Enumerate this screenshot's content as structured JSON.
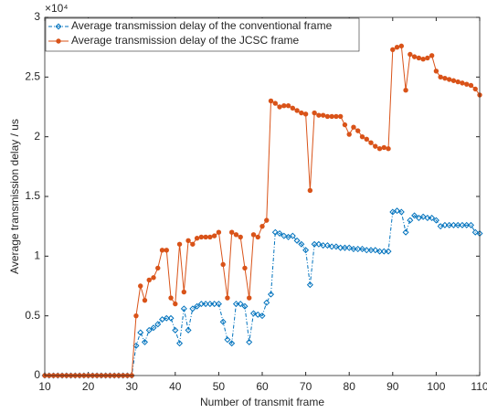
{
  "chart_data": {
    "type": "line",
    "xlabel": "Number of transmit frame",
    "ylabel": "Average transmission delay / us",
    "y_exponent_label": "×10⁴",
    "x": [
      10,
      11,
      12,
      13,
      14,
      15,
      16,
      17,
      18,
      19,
      20,
      21,
      22,
      23,
      24,
      25,
      26,
      27,
      28,
      29,
      30,
      31,
      32,
      33,
      34,
      35,
      36,
      37,
      38,
      39,
      40,
      41,
      42,
      43,
      44,
      45,
      46,
      47,
      48,
      49,
      50,
      51,
      52,
      53,
      54,
      55,
      56,
      57,
      58,
      59,
      60,
      61,
      62,
      63,
      64,
      65,
      66,
      67,
      68,
      69,
      70,
      71,
      72,
      73,
      74,
      75,
      76,
      77,
      78,
      79,
      80,
      81,
      82,
      83,
      84,
      85,
      86,
      87,
      88,
      89,
      90,
      91,
      92,
      93,
      94,
      95,
      96,
      97,
      98,
      99,
      100,
      101,
      102,
      103,
      104,
      105,
      106,
      107,
      108,
      109,
      110
    ],
    "series": [
      {
        "name": "Average transmission delay of the conventional frame",
        "color": "#0072bd",
        "marker": "diamond",
        "dash": "dashdot",
        "values": [
          0,
          0,
          0,
          0,
          0,
          0,
          0,
          0,
          0,
          0,
          0,
          0,
          0,
          0,
          0,
          0,
          0,
          0,
          0,
          0,
          0,
          2500,
          3600,
          2800,
          3800,
          4000,
          4300,
          4700,
          4800,
          4800,
          3800,
          2700,
          5600,
          3800,
          5600,
          5800,
          6000,
          6000,
          6000,
          6000,
          6000,
          4500,
          3000,
          2700,
          6000,
          6000,
          5800,
          2800,
          5200,
          5100,
          5000,
          6100,
          6800,
          12000,
          11900,
          11700,
          11600,
          11700,
          11300,
          11000,
          10500,
          7600,
          11000,
          11000,
          10900,
          10900,
          10800,
          10800,
          10700,
          10700,
          10700,
          10600,
          10600,
          10600,
          10500,
          10500,
          10500,
          10400,
          10400,
          10400,
          13700,
          13800,
          13700,
          12000,
          13000,
          13400,
          13200,
          13300,
          13200,
          13200,
          13000,
          12500,
          12600,
          12600,
          12600,
          12600,
          12600,
          12600,
          12600,
          12000,
          11900
        ]
      },
      {
        "name": "Average transmission delay of the JCSC frame",
        "color": "#d95319",
        "marker": "circle",
        "dash": "solid",
        "values": [
          0,
          0,
          0,
          0,
          0,
          0,
          0,
          0,
          0,
          0,
          0,
          0,
          0,
          0,
          0,
          0,
          0,
          0,
          0,
          0,
          0,
          5000,
          7500,
          6300,
          8000,
          8200,
          9000,
          10500,
          10500,
          6500,
          6000,
          11000,
          7000,
          11300,
          11000,
          11500,
          11600,
          11600,
          11600,
          11700,
          12000,
          9300,
          6500,
          12000,
          11800,
          11600,
          9000,
          6500,
          11800,
          11600,
          12500,
          13000,
          23000,
          22800,
          22500,
          22600,
          22600,
          22400,
          22200,
          22000,
          21900,
          15500,
          22000,
          21800,
          21800,
          21700,
          21700,
          21700,
          21700,
          21000,
          20200,
          20800,
          20500,
          20000,
          19800,
          19500,
          19200,
          19000,
          19100,
          19000,
          27300,
          27500,
          27600,
          23900,
          26900,
          26700,
          26600,
          26500,
          26600,
          26800,
          25500,
          25000,
          24900,
          24800,
          24700,
          24600,
          24500,
          24400,
          24300,
          24000,
          23500
        ]
      }
    ],
    "xlim": [
      10,
      110
    ],
    "xticks": [
      10,
      20,
      30,
      40,
      50,
      60,
      70,
      80,
      90,
      100,
      110
    ],
    "ylim": [
      0,
      30000
    ],
    "yticks": [
      0,
      {
        "value": 5000,
        "label": "0.5"
      },
      {
        "value": 10000,
        "label": "1"
      },
      {
        "value": 15000,
        "label": "1.5"
      },
      {
        "value": 20000,
        "label": "2"
      },
      {
        "value": 25000,
        "label": "2.5"
      },
      {
        "value": 30000,
        "label": "3"
      }
    ],
    "grid": false,
    "legend": "upper left"
  }
}
